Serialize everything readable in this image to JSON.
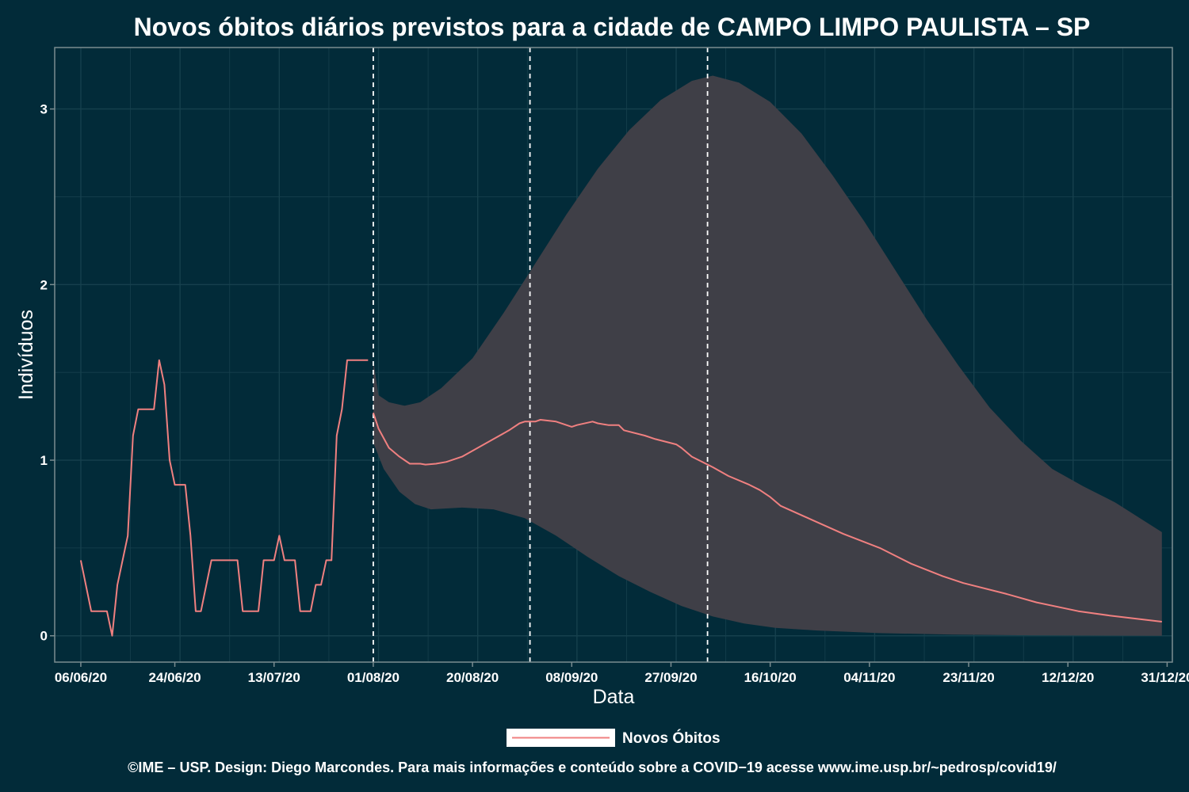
{
  "chart_data": {
    "type": "line",
    "title": "Novos óbitos diários previstos para a cidade de CAMPO LIMPO PAULISTA – SP",
    "xlabel": "Data",
    "ylabel": "Indivíduos",
    "xlim": [
      "2020-06-01",
      "2021-01-01"
    ],
    "ylim": [
      -0.15,
      3.35
    ],
    "x_ticks": [
      "2020-06-06",
      "2020-06-24",
      "2020-07-13",
      "2020-08-01",
      "2020-08-20",
      "2020-09-08",
      "2020-09-27",
      "2020-10-16",
      "2020-11-04",
      "2020-11-23",
      "2020-12-12",
      "2020-12-31"
    ],
    "x_tick_labels": [
      "06/06/20",
      "24/06/20",
      "13/07/20",
      "01/08/20",
      "20/08/20",
      "08/09/20",
      "27/09/20",
      "16/10/20",
      "04/11/20",
      "23/11/20",
      "12/12/20",
      "31/12/20"
    ],
    "y_ticks": [
      0,
      1,
      2,
      3
    ],
    "y_tick_labels": [
      "0",
      "1",
      "2",
      "3"
    ],
    "vlines": [
      "2020-08-01",
      "2020-08-31",
      "2020-10-04"
    ],
    "grid": true,
    "legend_position": "bottom",
    "series": [
      {
        "name": "Novos Óbitos",
        "color": "#f08080",
        "points": [
          [
            "2020-06-06",
            0.43
          ],
          [
            "2020-06-08",
            0.14
          ],
          [
            "2020-06-09",
            0.14
          ],
          [
            "2020-06-10",
            0.14
          ],
          [
            "2020-06-11",
            0.14
          ],
          [
            "2020-06-12",
            0.0
          ],
          [
            "2020-06-13",
            0.29
          ],
          [
            "2020-06-15",
            0.57
          ],
          [
            "2020-06-16",
            1.14
          ],
          [
            "2020-06-17",
            1.29
          ],
          [
            "2020-06-20",
            1.29
          ],
          [
            "2020-06-21",
            1.57
          ],
          [
            "2020-06-22",
            1.43
          ],
          [
            "2020-06-23",
            1.0
          ],
          [
            "2020-06-24",
            0.86
          ],
          [
            "2020-06-26",
            0.86
          ],
          [
            "2020-06-27",
            0.57
          ],
          [
            "2020-06-28",
            0.14
          ],
          [
            "2020-06-29",
            0.14
          ],
          [
            "2020-07-01",
            0.43
          ],
          [
            "2020-07-06",
            0.43
          ],
          [
            "2020-07-07",
            0.14
          ],
          [
            "2020-07-10",
            0.14
          ],
          [
            "2020-07-11",
            0.43
          ],
          [
            "2020-07-13",
            0.43
          ],
          [
            "2020-07-14",
            0.57
          ],
          [
            "2020-07-15",
            0.43
          ],
          [
            "2020-07-17",
            0.43
          ],
          [
            "2020-07-18",
            0.14
          ],
          [
            "2020-07-20",
            0.14
          ],
          [
            "2020-07-21",
            0.29
          ],
          [
            "2020-07-22",
            0.29
          ],
          [
            "2020-07-23",
            0.43
          ],
          [
            "2020-07-24",
            0.43
          ],
          [
            "2020-07-25",
            1.14
          ],
          [
            "2020-07-26",
            1.29
          ],
          [
            "2020-07-27",
            1.57
          ],
          [
            "2020-07-31",
            1.57
          ]
        ]
      },
      {
        "name": "Novos Óbitos",
        "color": "#f08080",
        "points": [
          [
            "2020-08-01",
            1.27
          ],
          [
            "2020-08-02",
            1.18
          ],
          [
            "2020-08-04",
            1.07
          ],
          [
            "2020-08-06",
            1.02
          ],
          [
            "2020-08-08",
            0.98
          ],
          [
            "2020-08-10",
            0.98
          ],
          [
            "2020-08-11",
            0.975
          ],
          [
            "2020-08-13",
            0.98
          ],
          [
            "2020-08-15",
            0.99
          ],
          [
            "2020-08-18",
            1.02
          ],
          [
            "2020-08-21",
            1.07
          ],
          [
            "2020-08-24",
            1.12
          ],
          [
            "2020-08-27",
            1.17
          ],
          [
            "2020-08-29",
            1.21
          ],
          [
            "2020-08-30",
            1.22
          ],
          [
            "2020-09-01",
            1.22
          ],
          [
            "2020-09-02",
            1.23
          ],
          [
            "2020-09-05",
            1.22
          ],
          [
            "2020-09-08",
            1.19
          ],
          [
            "2020-09-09",
            1.2
          ],
          [
            "2020-09-12",
            1.22
          ],
          [
            "2020-09-13",
            1.21
          ],
          [
            "2020-09-15",
            1.2
          ],
          [
            "2020-09-17",
            1.2
          ],
          [
            "2020-09-18",
            1.17
          ],
          [
            "2020-09-22",
            1.14
          ],
          [
            "2020-09-24",
            1.12
          ],
          [
            "2020-09-28",
            1.09
          ],
          [
            "2020-09-29",
            1.07
          ],
          [
            "2020-10-01",
            1.02
          ],
          [
            "2020-10-05",
            0.96
          ],
          [
            "2020-10-08",
            0.91
          ],
          [
            "2020-10-12",
            0.86
          ],
          [
            "2020-10-14",
            0.83
          ],
          [
            "2020-10-16",
            0.79
          ],
          [
            "2020-10-18",
            0.74
          ],
          [
            "2020-10-24",
            0.66
          ],
          [
            "2020-10-30",
            0.58
          ],
          [
            "2020-11-06",
            0.5
          ],
          [
            "2020-11-12",
            0.41
          ],
          [
            "2020-11-18",
            0.34
          ],
          [
            "2020-11-22",
            0.3
          ],
          [
            "2020-11-30",
            0.24
          ],
          [
            "2020-12-06",
            0.19
          ],
          [
            "2020-12-14",
            0.14
          ],
          [
            "2020-12-20",
            0.115
          ],
          [
            "2020-12-30",
            0.08
          ]
        ]
      }
    ],
    "band": {
      "fill": "#3f3f47",
      "upper": [
        [
          "2020-08-01",
          1.57
        ],
        [
          "2020-08-02",
          1.37
        ],
        [
          "2020-08-04",
          1.33
        ],
        [
          "2020-08-07",
          1.31
        ],
        [
          "2020-08-10",
          1.33
        ],
        [
          "2020-08-14",
          1.41
        ],
        [
          "2020-08-20",
          1.58
        ],
        [
          "2020-08-26",
          1.84
        ],
        [
          "2020-09-01",
          2.12
        ],
        [
          "2020-09-07",
          2.4
        ],
        [
          "2020-09-13",
          2.66
        ],
        [
          "2020-09-19",
          2.88
        ],
        [
          "2020-09-25",
          3.05
        ],
        [
          "2020-10-01",
          3.16
        ],
        [
          "2020-10-05",
          3.19
        ],
        [
          "2020-10-10",
          3.15
        ],
        [
          "2020-10-16",
          3.04
        ],
        [
          "2020-10-22",
          2.86
        ],
        [
          "2020-10-28",
          2.62
        ],
        [
          "2020-11-03",
          2.36
        ],
        [
          "2020-11-09",
          2.08
        ],
        [
          "2020-11-15",
          1.8
        ],
        [
          "2020-11-21",
          1.54
        ],
        [
          "2020-11-27",
          1.3
        ],
        [
          "2020-12-03",
          1.11
        ],
        [
          "2020-12-09",
          0.95
        ],
        [
          "2020-12-15",
          0.85
        ],
        [
          "2020-12-21",
          0.76
        ],
        [
          "2020-12-30",
          0.59
        ]
      ],
      "lower": [
        [
          "2020-08-01",
          1.1
        ],
        [
          "2020-08-03",
          0.95
        ],
        [
          "2020-08-06",
          0.82
        ],
        [
          "2020-08-09",
          0.75
        ],
        [
          "2020-08-12",
          0.72
        ],
        [
          "2020-08-18",
          0.73
        ],
        [
          "2020-08-24",
          0.72
        ],
        [
          "2020-08-30",
          0.67
        ],
        [
          "2020-09-05",
          0.57
        ],
        [
          "2020-09-11",
          0.45
        ],
        [
          "2020-09-17",
          0.34
        ],
        [
          "2020-09-23",
          0.25
        ],
        [
          "2020-09-29",
          0.17
        ],
        [
          "2020-10-05",
          0.11
        ],
        [
          "2020-10-11",
          0.07
        ],
        [
          "2020-10-17",
          0.045
        ],
        [
          "2020-10-25",
          0.03
        ],
        [
          "2020-11-06",
          0.015
        ],
        [
          "2020-11-20",
          0.007
        ],
        [
          "2020-12-05",
          0.003
        ],
        [
          "2020-12-30",
          0.0
        ]
      ]
    }
  },
  "legend": {
    "label": "Novos Óbitos"
  },
  "caption": "©IME – USP. Design: Diego Marcondes. Para mais informações e conteúdo sobre a COVID−19 acesse www.ime.usp.br/~pedrosp/covid19/",
  "colors": {
    "background": "#022b39",
    "panel_border": "#7a8c90",
    "grid": "#16404d",
    "band": "#3f3f47",
    "line": "#f08080",
    "vline": "#ffffff",
    "legend_key_bg": "#ffffff"
  }
}
